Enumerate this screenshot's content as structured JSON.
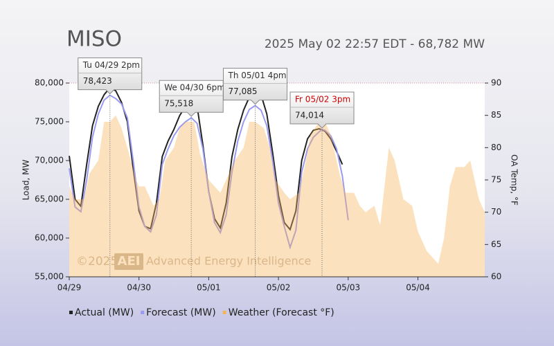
{
  "chart_data": {
    "type": "line",
    "title": "MISO",
    "subtitle": "2025 May 02 22:57 EDT - 68,782 MW",
    "ylabel": "Load, MW",
    "y2label": "OA Temp, °F",
    "watermark": {
      "copyright": "©2025",
      "logo": "AEI",
      "name": "Advanced Energy Intelligence"
    },
    "xlim": [
      0,
      143
    ],
    "xticks": [
      {
        "value": 0,
        "label": "04/29"
      },
      {
        "value": 24,
        "label": "04/30"
      },
      {
        "value": 48,
        "label": "05/01"
      },
      {
        "value": 72,
        "label": "05/02"
      },
      {
        "value": 96,
        "label": "05/03"
      },
      {
        "value": 120,
        "label": "05/04"
      }
    ],
    "ylim": [
      55000,
      80000
    ],
    "yticks": [
      {
        "value": 55000,
        "label": "55,000"
      },
      {
        "value": 60000,
        "label": "60,000"
      },
      {
        "value": 65000,
        "label": "65,000"
      },
      {
        "value": 70000,
        "label": "70,000"
      },
      {
        "value": 75000,
        "label": "75,000"
      },
      {
        "value": 80000,
        "label": "80,000"
      }
    ],
    "y2lim": [
      60,
      90
    ],
    "y2ticks": [
      60,
      65,
      70,
      75,
      80,
      85,
      90
    ],
    "grid": false,
    "legend": "bottom",
    "series": [
      {
        "name": "Actual (MW)",
        "color": "#222222",
        "x": [
          0,
          2,
          4,
          6,
          8,
          10,
          12,
          14,
          16,
          18,
          20,
          22,
          24,
          26,
          28,
          30,
          32,
          34,
          36,
          38,
          40,
          42,
          44,
          46,
          48,
          50,
          52,
          54,
          56,
          58,
          60,
          62,
          64,
          66,
          68,
          70,
          72,
          74,
          76,
          78,
          80,
          82,
          84,
          86,
          88,
          90,
          92,
          94
        ],
        "values": [
          70600,
          65000,
          64100,
          69500,
          74500,
          77000,
          78500,
          79400,
          79000,
          77500,
          75000,
          69000,
          63500,
          61500,
          61200,
          64500,
          70500,
          72500,
          74000,
          75800,
          77000,
          77500,
          77000,
          72000,
          66000,
          62500,
          61300,
          64500,
          70500,
          74000,
          76500,
          78200,
          79000,
          78500,
          76000,
          71000,
          65500,
          62000,
          61100,
          63500,
          70000,
          72800,
          73900,
          74100,
          73800,
          72800,
          71200,
          69500
        ]
      },
      {
        "name": "Forecast (MW)",
        "color": "#9a9af0",
        "x": [
          0,
          2,
          4,
          6,
          8,
          10,
          12,
          14,
          16,
          18,
          20,
          22,
          24,
          26,
          28,
          30,
          32,
          34,
          36,
          38,
          40,
          42,
          44,
          46,
          48,
          50,
          52,
          54,
          56,
          58,
          60,
          62,
          64,
          66,
          68,
          70,
          72,
          74,
          76,
          78,
          80,
          82,
          84,
          86,
          87,
          88,
          90,
          92,
          94,
          96
        ],
        "values": [
          69000,
          64000,
          63400,
          67500,
          73000,
          76000,
          77800,
          78423,
          78000,
          77300,
          75500,
          70000,
          64000,
          61500,
          60800,
          63000,
          69500,
          71500,
          73200,
          74300,
          75000,
          75518,
          74800,
          71500,
          66000,
          62000,
          60700,
          63000,
          68500,
          72500,
          75000,
          76600,
          77085,
          76500,
          74500,
          70000,
          64500,
          61500,
          58800,
          61000,
          68500,
          71500,
          73000,
          73700,
          74014,
          73900,
          73200,
          71500,
          68000,
          62300
        ],
        "value_labels": [
          null,
          null,
          null,
          null,
          null,
          null,
          null,
          "78,423",
          null,
          null,
          null,
          null,
          null,
          null,
          null,
          null,
          null,
          null,
          null,
          null,
          null,
          "75,518",
          null,
          null,
          null,
          null,
          null,
          null,
          null,
          null,
          null,
          null,
          "77,085",
          null,
          null,
          null,
          null,
          null,
          null,
          null,
          null,
          null,
          null,
          null,
          "74,014",
          null,
          null,
          null,
          null,
          null
        ]
      },
      {
        "name": "Weather (Forecast °F)",
        "color": "#f5b35c",
        "axis": "y2",
        "area": true,
        "x": [
          0,
          2,
          5,
          7,
          10,
          12,
          14,
          16,
          18,
          20,
          23,
          24,
          26,
          29,
          31,
          33,
          36,
          38,
          40,
          43,
          45,
          48,
          50,
          52,
          55,
          57,
          60,
          62,
          64,
          67,
          69,
          71,
          74,
          76,
          79,
          81,
          83,
          86,
          88,
          90,
          93,
          95,
          98,
          100,
          102,
          105,
          107,
          108,
          110,
          112,
          114,
          115,
          118,
          120,
          123,
          125,
          127,
          129,
          131,
          133,
          136,
          138,
          139,
          141,
          143
        ],
        "values": [
          74,
          72,
          72,
          76,
          78,
          84,
          84,
          85,
          83,
          80,
          75,
          74,
          74,
          71,
          72,
          78,
          80,
          83,
          84,
          84,
          79,
          75,
          74,
          73,
          76,
          78,
          80,
          84,
          84,
          83,
          80,
          75,
          73,
          72,
          73,
          77,
          82,
          84,
          84,
          82,
          76,
          73,
          73,
          71,
          70,
          71,
          68,
          72,
          80,
          78,
          74,
          72,
          71,
          67,
          64,
          63,
          62,
          66,
          74,
          77,
          77,
          78,
          76,
          72,
          70
        ]
      }
    ],
    "annotations": [
      {
        "x": 14,
        "text": "Tu 04/29 2pm",
        "color": "#333333"
      },
      {
        "x": 42,
        "text": "We 04/30 6pm",
        "color": "#333333"
      },
      {
        "x": 64,
        "text": "Th 05/01 4pm",
        "color": "#333333"
      },
      {
        "x": 87,
        "text": "Fr 05/02 3pm",
        "color": "#cc0000"
      }
    ]
  }
}
